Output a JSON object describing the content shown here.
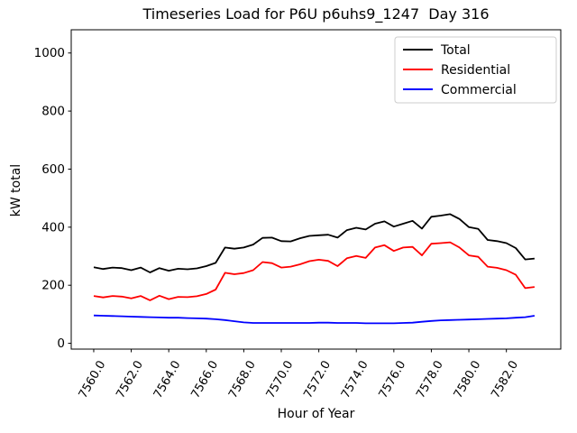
{
  "window": {
    "background": "#ffffff"
  },
  "chart_data": {
    "type": "line",
    "title": "Timeseries Load for P6U p6uhs9_1247  Day 316",
    "xlabel": "Hour of Year",
    "ylabel": "kW total",
    "x": [
      7560.0,
      7560.5,
      7561.0,
      7561.5,
      7562.0,
      7562.5,
      7563.0,
      7563.5,
      7564.0,
      7564.5,
      7565.0,
      7565.5,
      7566.0,
      7566.5,
      7567.0,
      7567.5,
      7568.0,
      7568.5,
      7569.0,
      7569.5,
      7570.0,
      7570.5,
      7571.0,
      7571.5,
      7572.0,
      7572.5,
      7573.0,
      7573.5,
      7574.0,
      7574.5,
      7575.0,
      7575.5,
      7576.0,
      7576.5,
      7577.0,
      7577.5,
      7578.0,
      7578.5,
      7579.0,
      7579.5,
      7580.0,
      7580.5,
      7581.0,
      7581.5,
      7582.0,
      7582.5,
      7583.0,
      7583.5
    ],
    "series": [
      {
        "name": "Total",
        "color": "#000000",
        "values": [
          262,
          256,
          261,
          259,
          252,
          261,
          244,
          259,
          250,
          257,
          255,
          258,
          266,
          277,
          330,
          326,
          330,
          340,
          363,
          364,
          352,
          351,
          362,
          370,
          372,
          374,
          364,
          390,
          398,
          392,
          412,
          420,
          402,
          412,
          422,
          395,
          436,
          440,
          445,
          428,
          400,
          394,
          356,
          352,
          345,
          328,
          289,
          292
        ]
      },
      {
        "name": "Residential",
        "color": "#ff0000",
        "values": [
          163,
          158,
          163,
          161,
          155,
          163,
          148,
          164,
          152,
          160,
          159,
          162,
          170,
          185,
          243,
          238,
          242,
          252,
          280,
          276,
          261,
          264,
          272,
          283,
          288,
          284,
          266,
          293,
          301,
          294,
          330,
          338,
          318,
          330,
          332,
          303,
          343,
          345,
          348,
          330,
          303,
          298,
          264,
          260,
          252,
          236,
          190,
          194
        ]
      },
      {
        "name": "Commercial",
        "color": "#0000ff",
        "values": [
          96,
          95,
          94,
          93,
          92,
          91,
          90,
          89,
          88,
          88,
          87,
          86,
          85,
          83,
          80,
          76,
          72,
          70,
          70,
          70,
          70,
          70,
          70,
          70,
          71,
          71,
          70,
          70,
          70,
          69,
          69,
          69,
          69,
          70,
          71,
          74,
          77,
          79,
          80,
          81,
          82,
          83,
          84,
          85,
          86,
          88,
          90,
          95
        ]
      }
    ],
    "xticks": {
      "values": [
        7560,
        7562,
        7564,
        7566,
        7568,
        7570,
        7572,
        7574,
        7576,
        7578,
        7580,
        7582
      ],
      "labels": [
        "7560.0",
        "7562.0",
        "7564.0",
        "7566.0",
        "7568.0",
        "7570.0",
        "7572.0",
        "7574.0",
        "7576.0",
        "7578.0",
        "7580.0",
        "7582.0"
      ],
      "rotation": 60
    },
    "yticks": {
      "values": [
        0,
        200,
        400,
        600,
        800,
        1000
      ],
      "labels": [
        "0",
        "200",
        "400",
        "600",
        "800",
        "1000"
      ]
    },
    "xlim": [
      7558.8,
      7584.9
    ],
    "ylim": [
      -20,
      1080
    ],
    "grid": false,
    "legend": {
      "position": "upper right",
      "entries": [
        "Total",
        "Residential",
        "Commercial"
      ],
      "border_color": "#cccccc"
    }
  }
}
